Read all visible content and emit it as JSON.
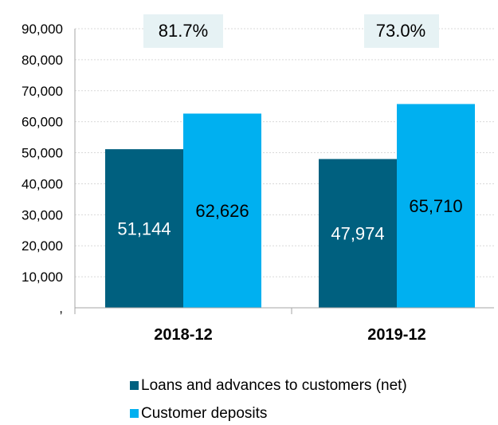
{
  "chart_data": {
    "type": "bar",
    "categories": [
      "2018-12",
      "2019-12"
    ],
    "series": [
      {
        "name": "Loans and advances to customers (net)",
        "values": [
          51144,
          47974
        ],
        "labels": [
          "51,144",
          "47,974"
        ],
        "color": "#00607f"
      },
      {
        "name": "Customer deposits",
        "values": [
          62626,
          65710
        ],
        "labels": [
          "62,626",
          "65,710"
        ],
        "color": "#00b0f0"
      }
    ],
    "annotations": [
      "81.7%",
      "73.0%"
    ],
    "ylim": [
      0,
      90000
    ],
    "yticks": [
      ",",
      "10,000",
      "20,000",
      "30,000",
      "40,000",
      "50,000",
      "60,000",
      "70,000",
      "80,000",
      "90,000"
    ],
    "grid": true,
    "legend_position": "bottom",
    "colors": {
      "annotation_bg": "#e6f2f4",
      "gridline": "#d9d9d9",
      "axis": "#a6a6a6",
      "loans_label": "#ffffff",
      "deposits_label": "#000000"
    }
  }
}
